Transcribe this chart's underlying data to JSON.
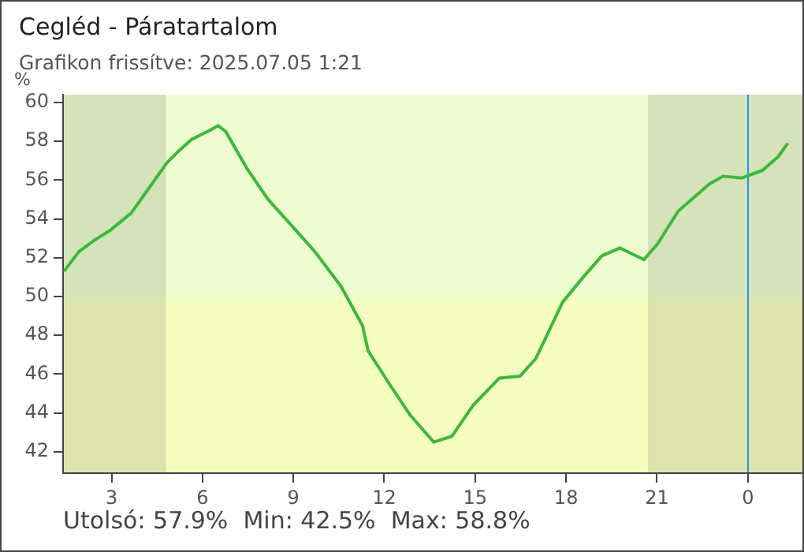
{
  "chart_data": {
    "type": "line",
    "title": "Cegléd - Páratartalom",
    "subtitle": "Grafikon frissítve: 2025.07.05 1:21",
    "ylabel": "%",
    "annotations": [
      "Utolsó: 57.9%  Min: 42.5%  Max: 58.8%"
    ],
    "x": [
      "2025-07-04T01:26",
      "2025-07-04T01:55",
      "2025-07-04T02:26",
      "2025-07-04T02:57",
      "2025-07-04T03:39",
      "2025-07-04T04:20",
      "2025-07-04T04:50",
      "2025-07-04T05:13",
      "2025-07-04T05:39",
      "2025-07-04T06:10",
      "2025-07-04T06:31",
      "2025-07-04T06:46",
      "2025-07-04T07:28",
      "2025-07-04T08:10",
      "2025-07-04T09:02",
      "2025-07-04T09:43",
      "2025-07-04T10:35",
      "2025-07-04T11:17",
      "2025-07-04T11:28",
      "2025-07-04T12:10",
      "2025-07-04T12:51",
      "2025-07-04T13:01",
      "2025-07-04T13:38",
      "2025-07-04T14:14",
      "2025-07-04T14:56",
      "2025-07-04T15:48",
      "2025-07-04T16:29",
      "2025-07-04T17:00",
      "2025-07-04T17:53",
      "2025-07-04T18:34",
      "2025-07-04T19:11",
      "2025-07-04T19:47",
      "2025-07-04T20:34",
      "2025-07-04T21:01",
      "2025-07-04T21:42",
      "2025-07-04T22:44",
      "2025-07-04T23:11",
      "2025-07-04T23:47",
      "2025-07-05T00:29",
      "2025-07-05T01:00",
      "2025-07-05T01:19"
    ],
    "series": [
      {
        "color": "#3cb83c",
        "values": [
          51.3,
          52.3,
          52.9,
          53.4,
          54.3,
          55.8,
          56.9,
          57.5,
          58.1,
          58.5,
          58.8,
          58.5,
          56.6,
          55.0,
          53.5,
          52.3,
          50.5,
          48.5,
          47.2,
          45.5,
          43.9,
          43.6,
          42.5,
          42.8,
          44.4,
          45.8,
          45.9,
          46.8,
          49.7,
          51.0,
          52.1,
          52.5,
          51.9,
          52.7,
          54.4,
          55.8,
          56.2,
          56.1,
          56.5,
          57.2,
          57.9
        ]
      }
    ],
    "xlim": [
      "2025-07-04T01:24",
      "2025-07-05T01:48"
    ],
    "xticks": [
      {
        "value": "2025-07-04T03:00",
        "label": "3"
      },
      {
        "value": "2025-07-04T06:00",
        "label": "6"
      },
      {
        "value": "2025-07-04T09:00",
        "label": "9"
      },
      {
        "value": "2025-07-04T12:00",
        "label": "12"
      },
      {
        "value": "2025-07-04T15:00",
        "label": "15"
      },
      {
        "value": "2025-07-04T18:00",
        "label": "18"
      },
      {
        "value": "2025-07-04T21:00",
        "label": "21"
      },
      {
        "value": "2025-07-05T00:00",
        "label": "0"
      }
    ],
    "ylim": [
      40.9,
      60.4
    ],
    "yticks": [
      42,
      44,
      46,
      48,
      50,
      52,
      54,
      56,
      58,
      60
    ],
    "bands": [
      {
        "axis": "y",
        "from": 50,
        "to": 60.4,
        "color": "#eefdd0"
      },
      {
        "axis": "y",
        "from": 40.9,
        "to": 50,
        "color": "#f6fdc0"
      },
      {
        "axis": "x",
        "from": "2025-07-04T01:24",
        "to": "2025-07-04T04:48",
        "color": "#000000"
      },
      {
        "axis": "x",
        "from": "2025-07-04T20:42",
        "to": "2025-07-05T01:48",
        "color": "#000000"
      }
    ],
    "ref_lines": [
      {
        "axis": "x",
        "value": "2025-07-05T00:00",
        "color": "#2196e8"
      }
    ],
    "grid": false,
    "legend": false,
    "marker": "none",
    "line_style": "solid"
  }
}
